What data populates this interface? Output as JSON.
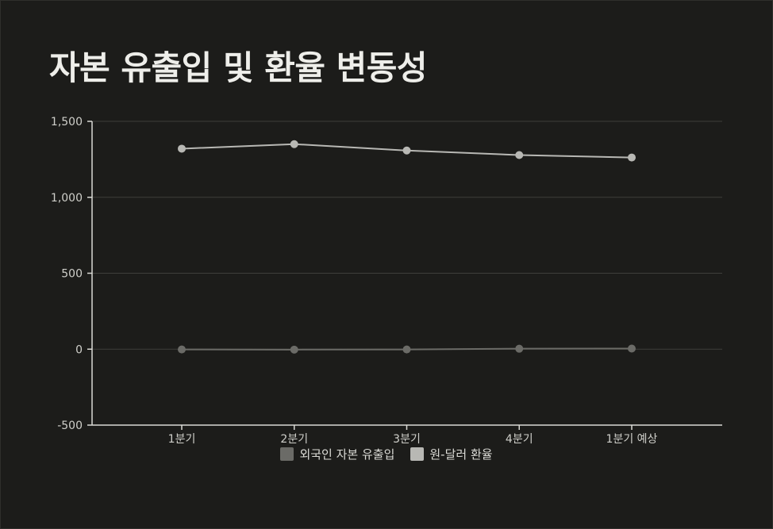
{
  "chart_data": {
    "type": "line",
    "title": "자본 유출입 및 환율 변동성",
    "categories": [
      "1분기",
      "2분기",
      "3분기",
      "4분기",
      "1분기 예상"
    ],
    "ylim": [
      -500,
      1500
    ],
    "yticks": [
      -500,
      0,
      500,
      1000,
      1500
    ],
    "ytick_labels": [
      "-500",
      "0",
      "500",
      "1,000",
      "1,500"
    ],
    "grid": true,
    "legend_position": "bottom",
    "series": [
      {
        "name": "외국인 자본 유출입",
        "color": "#6b6b67",
        "values": [
          -2,
          -3,
          -2,
          3,
          4
        ]
      },
      {
        "name": "원-달러 환율",
        "color": "#b8b8b4",
        "values": [
          1320,
          1350,
          1308,
          1278,
          1262
        ]
      }
    ]
  }
}
